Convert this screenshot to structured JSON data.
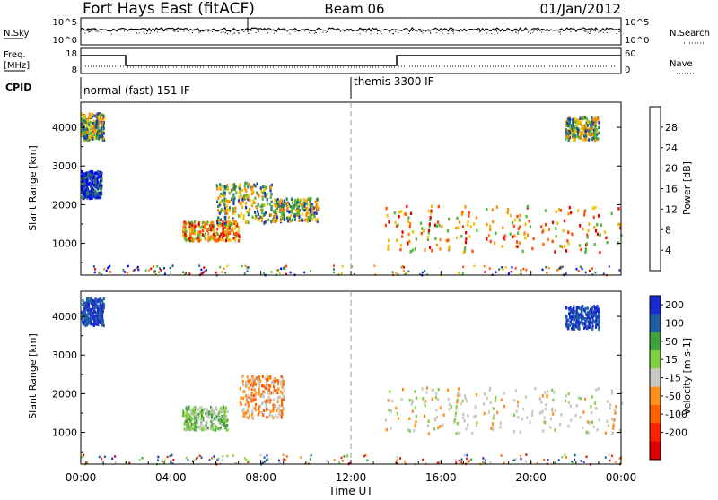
{
  "header": {
    "station": "Fort Hays East (fitACF)",
    "beam": "Beam 06",
    "date": "01/Jan/2012"
  },
  "sky_panel": {
    "left_label": "N.Sky",
    "right_label": "N.Search",
    "left_ticks": [
      "10^5",
      "10^0"
    ],
    "right_ticks": [
      "10^5",
      "10^0"
    ]
  },
  "freq_panel": {
    "left_label_line1": "Freq.",
    "left_label_line2": "[MHz]",
    "left_ticks": [
      "18",
      "8"
    ],
    "right_label": "Nave",
    "right_ticks": [
      "60",
      "0"
    ]
  },
  "cpid": {
    "label": "CPID",
    "modes": [
      {
        "name": "normal (fast) 151 IF",
        "start_hour": 0
      },
      {
        "name": "themis 3300 IF",
        "start_hour": 12
      }
    ]
  },
  "chart_data": [
    {
      "type": "heatmap",
      "name": "power",
      "ylabel": "Slant Range [km]",
      "yticks": [
        1000,
        2000,
        3000,
        4000
      ],
      "ylim": [
        180,
        4650
      ],
      "xlim_hours": [
        0,
        24
      ],
      "xtick_labels": [
        "00:00",
        "04:00",
        "08:00",
        "12:00",
        "16:00",
        "20:00",
        "00:00"
      ],
      "colorbar": {
        "label": "Power [dB]",
        "ticks": [
          "4",
          "8",
          "12",
          "16",
          "20",
          "24",
          "28"
        ],
        "colors": [
          "#0000ff",
          "#1d3ea8",
          "#2d7d5a",
          "#55b53a",
          "#f0c000",
          "#ff8c00",
          "#ff4500",
          "#e00000"
        ]
      },
      "features": [
        {
          "hours": [
            0.0,
            1.0
          ],
          "range_km": [
            3700,
            4400
          ],
          "level": "medium"
        },
        {
          "hours": [
            0.0,
            0.9
          ],
          "range_km": [
            2200,
            2900
          ],
          "level": "low"
        },
        {
          "hours": [
            4.5,
            7.0
          ],
          "range_km": [
            1100,
            1600
          ],
          "level": "high"
        },
        {
          "hours": [
            6.0,
            8.5
          ],
          "range_km": [
            1500,
            2600
          ],
          "level": "medium"
        },
        {
          "hours": [
            8.5,
            10.5
          ],
          "range_km": [
            1600,
            2200
          ],
          "level": "medium"
        },
        {
          "hours": [
            13.5,
            24.0
          ],
          "range_km": [
            800,
            2000
          ],
          "level": "high"
        },
        {
          "hours": [
            21.5,
            23.0
          ],
          "range_km": [
            3700,
            4300
          ],
          "level": "medium"
        }
      ]
    },
    {
      "type": "heatmap",
      "name": "velocity",
      "ylabel": "Slant Range [km]",
      "yticks": [
        1000,
        2000,
        3000,
        4000
      ],
      "ylim": [
        180,
        4650
      ],
      "xlim_hours": [
        0,
        24
      ],
      "xlabel": "Time UT",
      "xtick_labels": [
        "00:00",
        "04:00",
        "08:00",
        "12:00",
        "16:00",
        "20:00",
        "00:00"
      ],
      "colorbar": {
        "label": "Velocity [m s-1]",
        "ticks": [
          "200",
          "100",
          "50",
          "15",
          "-15",
          "-50",
          "-100",
          "-200"
        ],
        "colors": [
          "#1a2ad0",
          "#2060a0",
          "#40a040",
          "#80d040",
          "#c8c8c0",
          "#ff9020",
          "#ff6000",
          "#ff2000",
          "#e00000"
        ]
      },
      "features": [
        {
          "hours": [
            0.0,
            1.0
          ],
          "range_km": [
            3800,
            4500
          ],
          "level": "toward_fast"
        },
        {
          "hours": [
            4.5,
            6.5
          ],
          "range_km": [
            1100,
            1700
          ],
          "level": "toward_slow"
        },
        {
          "hours": [
            7.0,
            9.0
          ],
          "range_km": [
            1400,
            2500
          ],
          "level": "away_slow"
        },
        {
          "hours": [
            13.5,
            24.0
          ],
          "range_km": [
            1000,
            2200
          ],
          "level": "near_zero"
        },
        {
          "hours": [
            21.5,
            23.0
          ],
          "range_km": [
            3700,
            4300
          ],
          "level": "toward_fast"
        }
      ]
    }
  ]
}
